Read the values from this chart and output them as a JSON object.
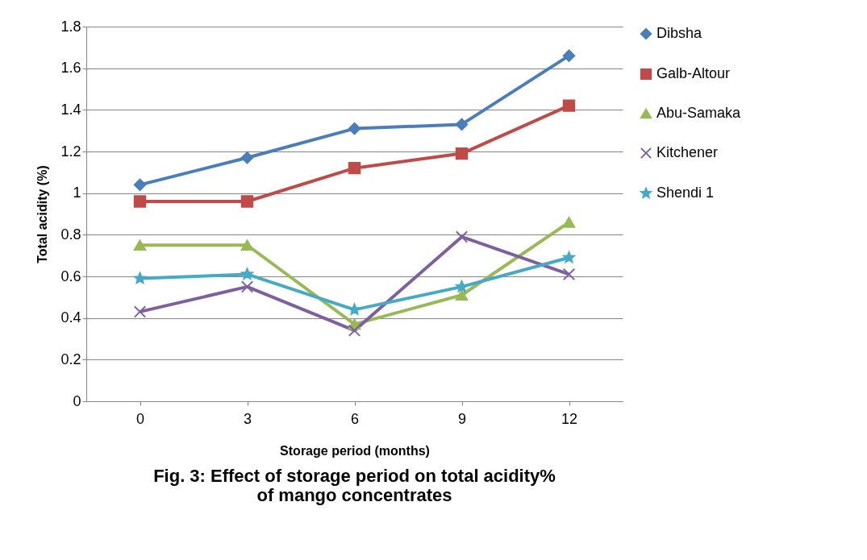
{
  "chart_data": {
    "type": "line",
    "title": "Fig. 3: Effect of storage period on total acidity% of mango concentrates",
    "xlabel": "Storage period (months)",
    "ylabel": "Total acidity (%)",
    "categories": [
      "0",
      "3",
      "6",
      "9",
      "12"
    ],
    "series": [
      {
        "name": "Dibsha",
        "color": "#4a7ebb",
        "marker": "diamond",
        "values": [
          1.04,
          1.17,
          1.31,
          1.33,
          1.66
        ]
      },
      {
        "name": "Galb-Altour",
        "color": "#be4b48",
        "marker": "square",
        "values": [
          0.96,
          0.96,
          1.12,
          1.19,
          1.42
        ]
      },
      {
        "name": "Abu-Samaka",
        "color": "#98b954",
        "marker": "triangle",
        "values": [
          0.75,
          0.75,
          0.37,
          0.51,
          0.86
        ]
      },
      {
        "name": "Kitchener",
        "color": "#7d60a0",
        "marker": "cross",
        "values": [
          0.43,
          0.55,
          0.34,
          0.79,
          0.61
        ]
      },
      {
        "name": "Shendi 1",
        "color": "#46aac5",
        "marker": "star",
        "values": [
          0.59,
          0.61,
          0.44,
          0.55,
          0.69
        ]
      }
    ],
    "ylim": [
      0,
      1.8
    ],
    "yticks": [
      0,
      0.2,
      0.4,
      0.6,
      0.8,
      1,
      1.2,
      1.4,
      1.6,
      1.8
    ],
    "grid": "y",
    "legend": "right"
  }
}
